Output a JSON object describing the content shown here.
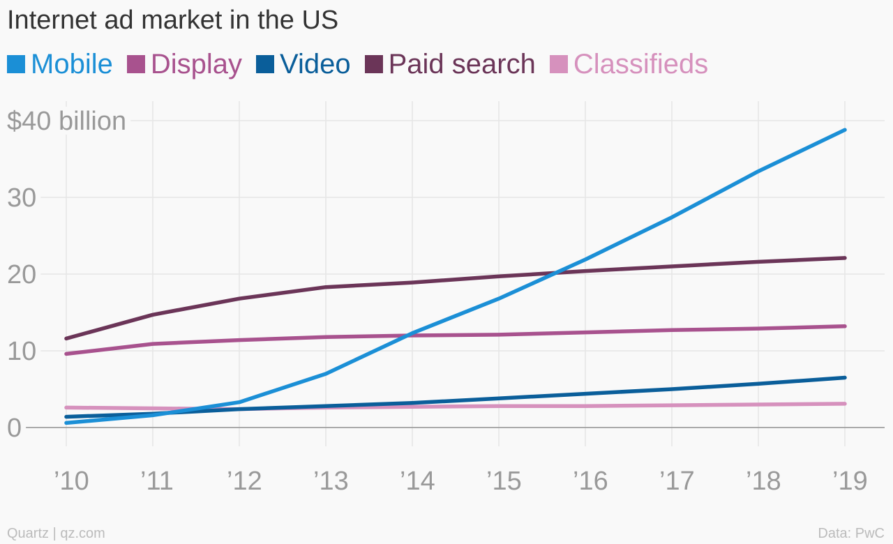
{
  "header": {
    "title": "Internet ad market in the US"
  },
  "footer": {
    "source_left": "Quartz | qz.com",
    "source_right": "Data: PwC"
  },
  "chart_data": {
    "type": "line",
    "title": "Internet ad market in the US",
    "xlabel": "",
    "ylabel": "",
    "x": [
      "’10",
      "’11",
      "’12",
      "’13",
      "’14",
      "’15",
      "’16",
      "’17",
      "’18",
      "’19"
    ],
    "y_ticks": [
      {
        "value": 0,
        "label": "0"
      },
      {
        "value": 10,
        "label": "10"
      },
      {
        "value": 20,
        "label": "20"
      },
      {
        "value": 30,
        "label": "30"
      },
      {
        "value": 40,
        "label": "$40 billion"
      }
    ],
    "ylim": [
      0,
      40
    ],
    "grid": true,
    "legend": "top",
    "series": [
      {
        "name": "Mobile",
        "color": "#1b8fd6",
        "values": [
          0.6,
          1.6,
          3.3,
          7.0,
          12.3,
          16.8,
          21.9,
          27.4,
          33.4,
          38.8
        ]
      },
      {
        "name": "Display",
        "color": "#a8528e",
        "values": [
          9.6,
          10.9,
          11.4,
          11.8,
          12.0,
          12.1,
          12.4,
          12.7,
          12.9,
          13.2
        ]
      },
      {
        "name": "Video",
        "color": "#0a5e9a",
        "values": [
          1.4,
          1.8,
          2.4,
          2.8,
          3.2,
          3.8,
          4.4,
          5.0,
          5.7,
          6.5
        ]
      },
      {
        "name": "Paid search",
        "color": "#6b3558",
        "values": [
          11.6,
          14.7,
          16.8,
          18.3,
          18.9,
          19.7,
          20.4,
          21.0,
          21.6,
          22.1
        ]
      },
      {
        "name": "Classifieds",
        "color": "#d691bd",
        "values": [
          2.6,
          2.5,
          2.4,
          2.6,
          2.7,
          2.8,
          2.8,
          2.9,
          3.0,
          3.1
        ]
      }
    ]
  }
}
